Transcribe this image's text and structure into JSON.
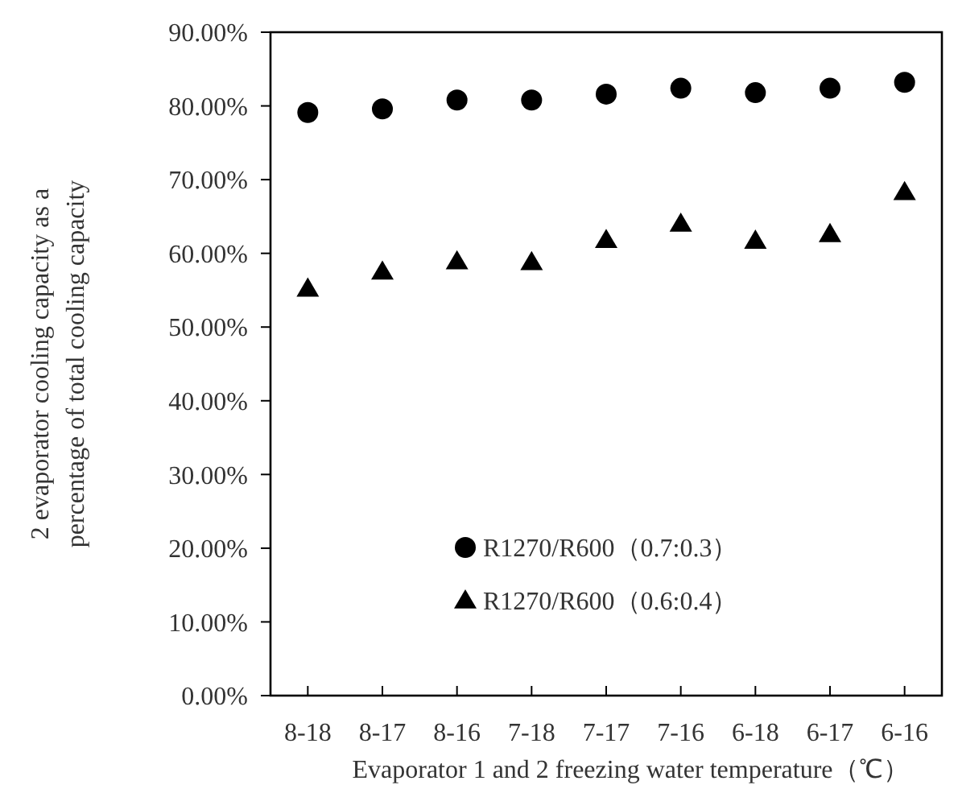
{
  "chart_data": {
    "type": "scatter",
    "xlabel": "Evaporator 1 and 2 freezing water temperature（℃）",
    "ylabel": "2 evaporator cooling capacity as a\npercentage of total cooling capacity",
    "categories": [
      "8-18",
      "8-17",
      "8-16",
      "7-18",
      "7-17",
      "7-16",
      "6-18",
      "6-17",
      "6-16"
    ],
    "series": [
      {
        "name": "R1270/R600（0.7:0.3）",
        "color": "#000000",
        "marker": "circle",
        "values": [
          79.1,
          79.6,
          80.8,
          80.8,
          81.6,
          82.4,
          81.8,
          82.4,
          83.2
        ]
      },
      {
        "name": "R1270/R600（0.6:0.4）",
        "color": "#000000",
        "marker": "triangle",
        "values": [
          55.2,
          57.5,
          58.9,
          58.8,
          61.8,
          64.0,
          61.7,
          62.6,
          68.3
        ]
      }
    ],
    "ylim": [
      0,
      90
    ],
    "yticks": [
      {
        "value": 0,
        "label": "0.00%"
      },
      {
        "value": 10,
        "label": "10.00%"
      },
      {
        "value": 20,
        "label": "20.00%"
      },
      {
        "value": 30,
        "label": "30.00%"
      },
      {
        "value": 40,
        "label": "40.00%"
      },
      {
        "value": 50,
        "label": "50.00%"
      },
      {
        "value": 60,
        "label": "60.00%"
      },
      {
        "value": 70,
        "label": "70.00%"
      },
      {
        "value": 80,
        "label": "80.00%"
      },
      {
        "value": 90,
        "label": "90.00%"
      }
    ],
    "grid": false,
    "legend": "bottom"
  }
}
